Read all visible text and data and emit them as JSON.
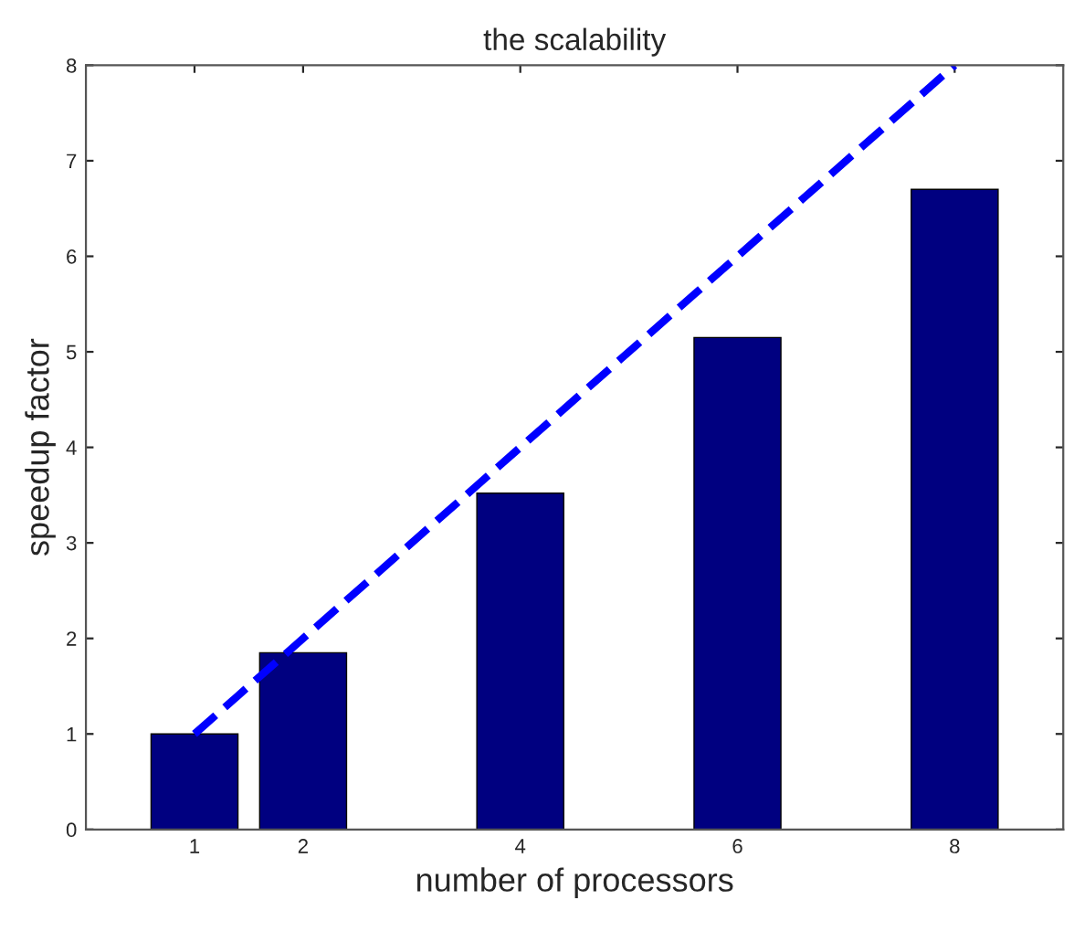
{
  "chart_data": {
    "type": "bar",
    "title": "the scalability",
    "xlabel": "number of processors",
    "ylabel": "speedup factor",
    "series": [
      {
        "color": "#000080",
        "x": [
          1,
          2,
          4,
          6,
          8
        ],
        "values": [
          1.0,
          1.85,
          3.52,
          5.15,
          6.7
        ]
      },
      {
        "type": "line",
        "color": "#0000ff",
        "line_style": "dashed",
        "x": [
          1,
          8
        ],
        "values": [
          1,
          8
        ]
      }
    ],
    "xlim": [
      0,
      9
    ],
    "xticks": [
      1,
      2,
      4,
      6,
      8
    ],
    "ylim": [
      0,
      8
    ],
    "yticks": [
      0,
      1,
      2,
      3,
      4,
      5,
      6,
      7,
      8
    ],
    "grid": false
  }
}
